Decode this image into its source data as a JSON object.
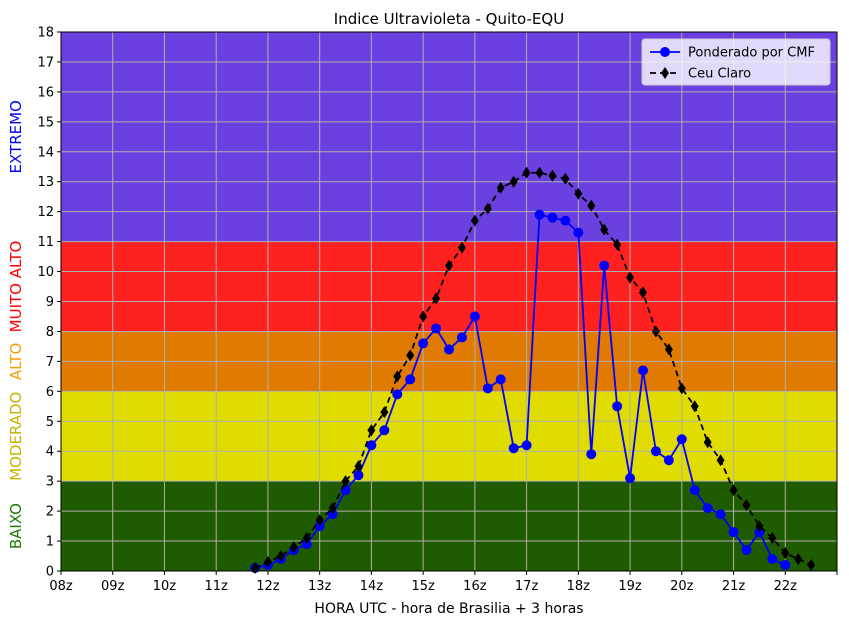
{
  "chart_data": {
    "type": "line",
    "title": "Indice Ultravioleta - Quito-EQU",
    "xlabel": "HORA UTC - hora de Brasilia + 3 horas",
    "ylabel": "",
    "x_tick_labels": [
      "08z",
      "09z",
      "10z",
      "11z",
      "12z",
      "13z",
      "14z",
      "15z",
      "16z",
      "17z",
      "18z",
      "19z",
      "20z",
      "21z",
      "22z",
      ""
    ],
    "xlim": [
      8,
      23
    ],
    "ylim": [
      0,
      18
    ],
    "y_ticks": [
      0,
      1,
      2,
      3,
      4,
      5,
      6,
      7,
      8,
      9,
      10,
      11,
      12,
      13,
      14,
      15,
      16,
      17,
      18
    ],
    "grid": true,
    "legend_position": "top-right",
    "bands": [
      {
        "label": "BAIXO",
        "from": 0,
        "to": 3,
        "color": "#1f5c00",
        "label_color": "#1f7a00"
      },
      {
        "label": "MODERADO",
        "from": 3,
        "to": 6,
        "color": "#e0dc00",
        "label_color": "#c8b400"
      },
      {
        "label": "ALTO",
        "from": 6,
        "to": 8,
        "color": "#e07a00",
        "label_color": "#f0a000"
      },
      {
        "label": "MUITO ALTO",
        "from": 8,
        "to": 11,
        "color": "#ff2020",
        "label_color": "#ff0000"
      },
      {
        "label": "EXTREMO",
        "from": 11,
        "to": 18,
        "color": "#6a40e0",
        "label_color": "#0000ff"
      }
    ],
    "series": [
      {
        "name": "Ponderado por CMF",
        "color": "#0000ff",
        "marker": "circle",
        "line": "solid",
        "points": [
          [
            11.75,
            0.1
          ],
          [
            12.0,
            0.2
          ],
          [
            12.25,
            0.4
          ],
          [
            12.5,
            0.7
          ],
          [
            12.75,
            0.9
          ],
          [
            13.0,
            1.5
          ],
          [
            13.25,
            1.9
          ],
          [
            13.5,
            2.7
          ],
          [
            13.75,
            3.2
          ],
          [
            14.0,
            4.2
          ],
          [
            14.25,
            4.7
          ],
          [
            14.5,
            5.9
          ],
          [
            14.75,
            6.4
          ],
          [
            15.0,
            7.6
          ],
          [
            15.25,
            8.1
          ],
          [
            15.5,
            7.4
          ],
          [
            15.75,
            7.8
          ],
          [
            16.0,
            8.5
          ],
          [
            16.25,
            6.1
          ],
          [
            16.5,
            6.4
          ],
          [
            16.75,
            4.1
          ],
          [
            17.0,
            4.2
          ],
          [
            17.25,
            11.9
          ],
          [
            17.5,
            11.8
          ],
          [
            17.75,
            11.7
          ],
          [
            18.0,
            11.3
          ],
          [
            18.25,
            3.9
          ],
          [
            18.5,
            10.2
          ],
          [
            18.75,
            5.5
          ],
          [
            19.0,
            3.1
          ],
          [
            19.25,
            6.7
          ],
          [
            19.5,
            4.0
          ],
          [
            19.75,
            3.7
          ],
          [
            20.0,
            4.4
          ],
          [
            20.25,
            2.7
          ],
          [
            20.5,
            2.1
          ],
          [
            20.75,
            1.9
          ],
          [
            21.0,
            1.3
          ],
          [
            21.25,
            0.7
          ],
          [
            21.5,
            1.3
          ],
          [
            21.75,
            0.4
          ],
          [
            22.0,
            0.2
          ]
        ]
      },
      {
        "name": "Ceu Claro",
        "color": "#000000",
        "marker": "diamond",
        "line": "dashed",
        "points": [
          [
            11.75,
            0.1
          ],
          [
            12.0,
            0.3
          ],
          [
            12.25,
            0.5
          ],
          [
            12.5,
            0.8
          ],
          [
            12.75,
            1.1
          ],
          [
            13.0,
            1.7
          ],
          [
            13.25,
            2.1
          ],
          [
            13.5,
            3.0
          ],
          [
            13.75,
            3.5
          ],
          [
            14.0,
            4.7
          ],
          [
            14.25,
            5.3
          ],
          [
            14.5,
            6.5
          ],
          [
            14.75,
            7.2
          ],
          [
            15.0,
            8.5
          ],
          [
            15.25,
            9.1
          ],
          [
            15.5,
            10.2
          ],
          [
            15.75,
            10.8
          ],
          [
            16.0,
            11.7
          ],
          [
            16.25,
            12.1
          ],
          [
            16.5,
            12.8
          ],
          [
            16.75,
            13.0
          ],
          [
            17.0,
            13.3
          ],
          [
            17.25,
            13.3
          ],
          [
            17.5,
            13.2
          ],
          [
            17.75,
            13.1
          ],
          [
            18.0,
            12.6
          ],
          [
            18.25,
            12.2
          ],
          [
            18.5,
            11.4
          ],
          [
            18.75,
            10.9
          ],
          [
            19.0,
            9.8
          ],
          [
            19.25,
            9.3
          ],
          [
            19.5,
            8.0
          ],
          [
            19.75,
            7.4
          ],
          [
            20.0,
            6.1
          ],
          [
            20.25,
            5.5
          ],
          [
            20.5,
            4.3
          ],
          [
            20.75,
            3.7
          ],
          [
            21.0,
            2.7
          ],
          [
            21.25,
            2.2
          ],
          [
            21.5,
            1.5
          ],
          [
            21.75,
            1.1
          ],
          [
            22.0,
            0.6
          ],
          [
            22.25,
            0.4
          ],
          [
            22.5,
            0.2
          ]
        ]
      }
    ]
  }
}
